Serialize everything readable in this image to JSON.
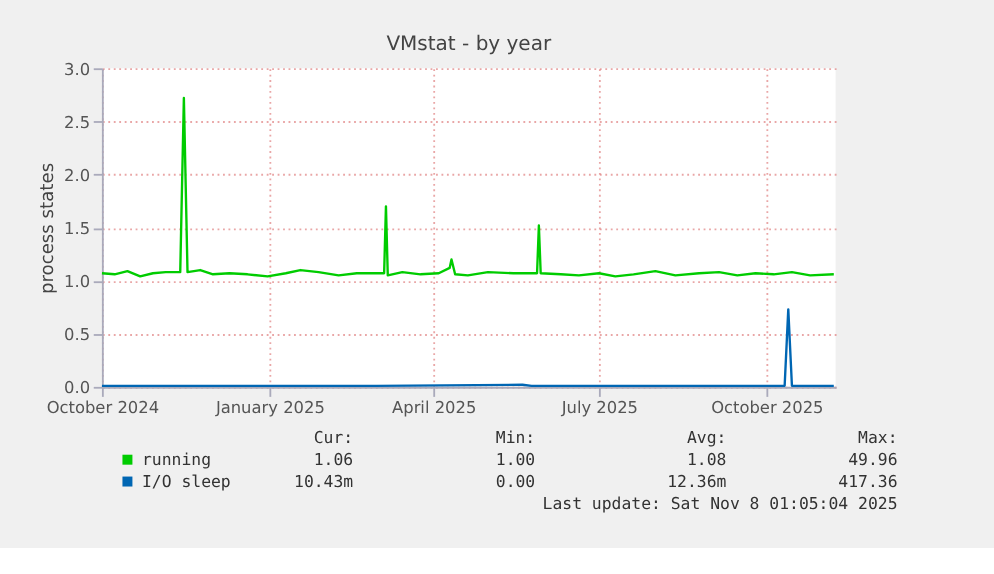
{
  "chart_data": {
    "type": "line",
    "title": "VMstat - by year",
    "ylabel": "process states",
    "xlim": [
      "2024-10-01",
      "2025-11-08"
    ],
    "xticks": [
      {
        "value": "2024-10-01",
        "label": "October 2024"
      },
      {
        "value": "2025-01-01",
        "label": "January 2025"
      },
      {
        "value": "2025-04-01",
        "label": "April 2025"
      },
      {
        "value": "2025-07-01",
        "label": "July 2025"
      },
      {
        "value": "2025-10-01",
        "label": "October 2025"
      }
    ],
    "ylim": [
      0,
      3
    ],
    "yticks": [
      {
        "value": 0,
        "label": "0.0"
      },
      {
        "value": 0.5,
        "label": "0.5"
      },
      {
        "value": 1,
        "label": "1.0"
      },
      {
        "value": 1.5,
        "label": "1.5"
      },
      {
        "value": 2,
        "label": "2.0"
      },
      {
        "value": 2.5,
        "label": "2.5"
      },
      {
        "value": 3,
        "label": "3.0"
      }
    ],
    "grid": true,
    "legend": "bottom",
    "series": [
      {
        "name": "running",
        "color": "#00cc00",
        "x": [
          "2024-10-01",
          "2024-10-08",
          "2024-10-15",
          "2024-10-22",
          "2024-10-29",
          "2024-11-05",
          "2024-11-13",
          "2024-11-15",
          "2024-11-17",
          "2024-11-24",
          "2024-12-01",
          "2024-12-10",
          "2024-12-20",
          "2024-12-31",
          "2025-01-10",
          "2025-01-18",
          "2025-01-28",
          "2025-02-08",
          "2025-02-18",
          "2025-02-28",
          "2025-03-05",
          "2025-03-06",
          "2025-03-07",
          "2025-03-15",
          "2025-03-25",
          "2025-04-04",
          "2025-04-10",
          "2025-04-11",
          "2025-04-13",
          "2025-04-20",
          "2025-05-01",
          "2025-05-15",
          "2025-05-28",
          "2025-05-29",
          "2025-05-30",
          "2025-06-10",
          "2025-06-20",
          "2025-07-01",
          "2025-07-10",
          "2025-07-20",
          "2025-08-01",
          "2025-08-12",
          "2025-08-25",
          "2025-09-05",
          "2025-09-15",
          "2025-09-25",
          "2025-10-05",
          "2025-10-15",
          "2025-10-25",
          "2025-11-07"
        ],
        "values": [
          1.07,
          1.06,
          1.09,
          1.04,
          1.07,
          1.08,
          1.08,
          2.72,
          1.08,
          1.1,
          1.06,
          1.07,
          1.06,
          1.04,
          1.07,
          1.1,
          1.08,
          1.05,
          1.07,
          1.07,
          1.07,
          1.7,
          1.05,
          1.08,
          1.06,
          1.07,
          1.12,
          1.2,
          1.06,
          1.05,
          1.08,
          1.07,
          1.07,
          1.52,
          1.07,
          1.06,
          1.05,
          1.07,
          1.04,
          1.06,
          1.09,
          1.05,
          1.07,
          1.08,
          1.05,
          1.07,
          1.06,
          1.08,
          1.05,
          1.06
        ]
      },
      {
        "name": "I/O sleep",
        "color": "#0066b3",
        "x": [
          "2024-10-01",
          "2024-11-15",
          "2024-12-31",
          "2025-03-01",
          "2025-05-20",
          "2025-05-25",
          "2025-08-01",
          "2025-10-11",
          "2025-10-13",
          "2025-10-15",
          "2025-11-07"
        ],
        "values": [
          0.01,
          0.01,
          0.01,
          0.01,
          0.02,
          0.01,
          0.01,
          0.01,
          0.73,
          0.01,
          0.01
        ]
      }
    ],
    "annotations": [
      "Cur:",
      "Min:",
      "Avg:",
      "Max:",
      "1.06",
      "1.00",
      "1.08",
      "49.96",
      "10.43m",
      "0.00",
      "12.36m",
      "417.36",
      "Last update: Sat Nov  8 01:05:04 2025"
    ]
  }
}
